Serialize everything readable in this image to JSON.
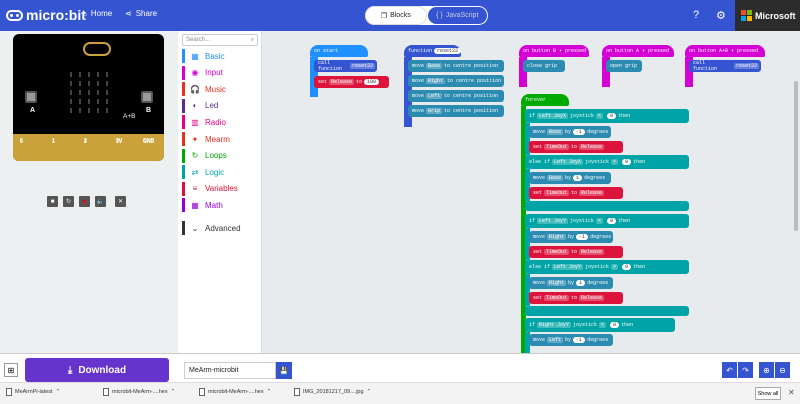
{
  "app": {
    "logo_text": "micro:bit",
    "home_label": "Home",
    "share_label": "Share",
    "blocks_label": "Blocks",
    "js_label": "JavaScript",
    "ms_label": "Microsoft",
    "help_icon": "?",
    "gear_icon": "⚙"
  },
  "simulator": {
    "button_a": "A",
    "button_b": "B",
    "ab_label": "A+B",
    "pins": [
      "0",
      "1",
      "2",
      "3V",
      "GND"
    ],
    "pins_top": [
      "0",
      "1",
      "2",
      "3V",
      "GND"
    ],
    "controls": [
      "■",
      "↻",
      "🐞",
      "🔈",
      "✕"
    ]
  },
  "toolbox": {
    "search_placeholder": "Search...",
    "categories": [
      {
        "label": "Basic",
        "color": "#1e90ff",
        "icon": "▦"
      },
      {
        "label": "Input",
        "color": "#d400d4",
        "icon": "◉"
      },
      {
        "label": "Music",
        "color": "#e63022",
        "icon": "🎧"
      },
      {
        "label": "Led",
        "color": "#5c2d91",
        "icon": "◐"
      },
      {
        "label": "Radio",
        "color": "#e3008c",
        "icon": "▥"
      },
      {
        "label": "Mearm",
        "color": "#e63022",
        "icon": "✦"
      },
      {
        "label": "Loops",
        "color": "#00aa00",
        "icon": "↻"
      },
      {
        "label": "Logic",
        "color": "#00a4a6",
        "icon": "⇄"
      },
      {
        "label": "Variables",
        "color": "#dc143c",
        "icon": "≡"
      },
      {
        "label": "Math",
        "color": "#9400d3",
        "icon": "▦"
      },
      {
        "label": "Advanced",
        "color": "#333333",
        "icon": "⌄"
      }
    ]
  },
  "workspace": {
    "on_start": "on start",
    "call_function": "call function",
    "reset22": "reset22",
    "set": "set",
    "release": "Release",
    "to": "to",
    "num100": "100",
    "function_label": "function",
    "move": "move",
    "base": "Base",
    "right": "Right",
    "left": "Left",
    "grip": "Grip",
    "to_centre": "to centre position",
    "on_button_b": "on button  B  ▾  pressed",
    "on_button_a": "on button  A  ▾  pressed",
    "on_button_ab": "on button  A+B  ▾  pressed",
    "close_grip": "close grip",
    "open_grip": "open grip",
    "forever": "forever",
    "if": "if",
    "else_if": "else if",
    "left_joyx": "Left JoyX",
    "joystick": "joystick",
    "lt": "<",
    "gt": ">",
    "zero": "0",
    "then": "then",
    "by": "by",
    "neg1": "-1",
    "one": "1",
    "degrees": "degrees",
    "timeout": "TimeOut",
    "right_joyy": "Right JoyY",
    "left_joyy": "Left JoyY"
  },
  "bottom": {
    "download": "Download",
    "project_name": "MeArm-microbit"
  },
  "downloads": {
    "items": [
      "MeArmPi-latest",
      "microbit-MeArm-....hex",
      "microbit-MeArm-....hex",
      "IMG_20181217_09....jpg"
    ],
    "show_all": "Show all"
  }
}
